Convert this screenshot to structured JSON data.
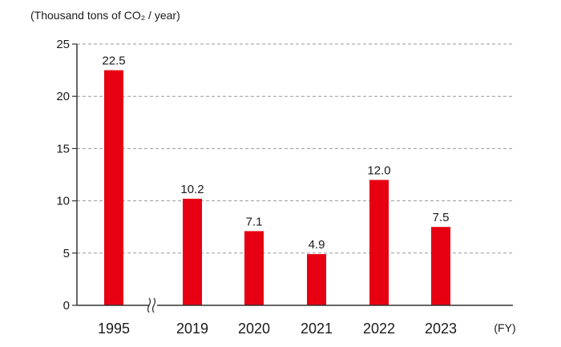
{
  "chart_data": {
    "type": "bar",
    "title": "",
    "ylabel": "(Thousand tons of CO₂ / year)",
    "xlabel": "(FY)",
    "categories": [
      "1995",
      "2019",
      "2020",
      "2021",
      "2022",
      "2023"
    ],
    "values": [
      22.5,
      10.2,
      7.1,
      4.9,
      12.0,
      7.5
    ],
    "data_labels": [
      "22.5",
      "10.2",
      "7.1",
      "4.9",
      "12.0",
      "7.5"
    ],
    "yticks": [
      0,
      5,
      10,
      15,
      20,
      25
    ],
    "ylim": [
      0,
      25
    ],
    "grid": true,
    "axis_break_after_first_category": true,
    "bar_color": "#e60012"
  }
}
